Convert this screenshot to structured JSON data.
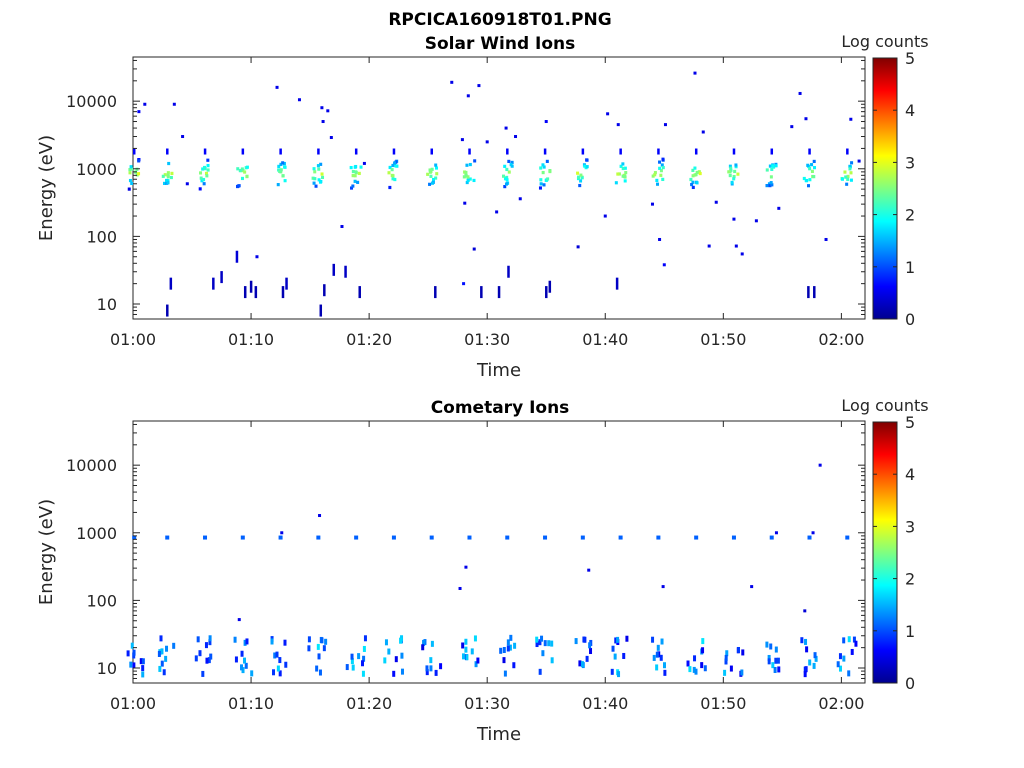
{
  "figure_title": "RPCICA160918T01.PNG",
  "colormap": [
    "#00008f",
    "#0000ff",
    "#0080ff",
    "#00ffff",
    "#80ff80",
    "#ffff00",
    "#ff8000",
    "#ff0000",
    "#800000"
  ],
  "chart_data": [
    {
      "type": "heatmap",
      "title": "Solar Wind Ions",
      "xlabel": "Time",
      "ylabel": "Energy (eV)",
      "xticks": [
        "01:00",
        "01:10",
        "01:20",
        "01:30",
        "01:40",
        "01:50",
        "02:00"
      ],
      "yticks": [
        "10",
        "100",
        "1000",
        "10000"
      ],
      "yscale": "log",
      "ylim": [
        6,
        45000
      ],
      "xlim_minutes": [
        0,
        62
      ],
      "colorbar": {
        "label": "Log counts",
        "ticks": [
          "0",
          "1",
          "2",
          "3",
          "4",
          "5"
        ],
        "range": [
          0,
          5
        ]
      },
      "sweeps": {
        "times_minutes": [
          0.1,
          2.9,
          6.1,
          9.3,
          12.5,
          15.7,
          18.9,
          22.1,
          25.3,
          28.5,
          31.7,
          34.9,
          38.1,
          41.3,
          44.5,
          47.7,
          50.9,
          54.1,
          57.3,
          60.5
        ],
        "peak_energy_eV": 850,
        "peak_log_counts": 2.8
      },
      "scattered_points": [
        [
          0.5,
          7000,
          0.6
        ],
        [
          1.0,
          9000,
          0.5
        ],
        [
          3.5,
          9000,
          0.5
        ],
        [
          4.2,
          3000,
          0.5
        ],
        [
          4.6,
          600,
          0.5
        ],
        [
          12.2,
          16000,
          0.5
        ],
        [
          14.1,
          10500,
          0.5
        ],
        [
          16.1,
          5000,
          0.5
        ],
        [
          16.5,
          7200,
          0.5
        ],
        [
          16.8,
          2900,
          0.5
        ],
        [
          16.0,
          8000,
          0.5
        ],
        [
          17.7,
          140,
          0.5
        ],
        [
          27.0,
          19000,
          0.5
        ],
        [
          27.9,
          2700,
          0.5
        ],
        [
          28.0,
          20,
          0.7
        ],
        [
          28.1,
          310,
          0.5
        ],
        [
          28.4,
          12000,
          0.5
        ],
        [
          28.9,
          65,
          0.4
        ],
        [
          29.3,
          17000,
          0.5
        ],
        [
          30.0,
          2500,
          0.5
        ],
        [
          30.8,
          230,
          0.5
        ],
        [
          31.6,
          4000,
          0.5
        ],
        [
          32.4,
          3000,
          0.5
        ],
        [
          32.8,
          360,
          0.5
        ],
        [
          35.0,
          5000,
          0.6
        ],
        [
          37.7,
          70,
          0.4
        ],
        [
          40.0,
          200,
          0.5
        ],
        [
          40.2,
          6500,
          0.5
        ],
        [
          41.1,
          4500,
          0.5
        ],
        [
          44.0,
          300,
          0.5
        ],
        [
          44.6,
          90,
          0.5
        ],
        [
          45.1,
          4500,
          0.5
        ],
        [
          45.0,
          38,
          0.6
        ],
        [
          47.6,
          26000,
          0.5
        ],
        [
          48.3,
          3500,
          0.5
        ],
        [
          48.8,
          72,
          0.5
        ],
        [
          49.4,
          320,
          0.5
        ],
        [
          50.9,
          180,
          0.5
        ],
        [
          51.1,
          72,
          0.5
        ],
        [
          51.6,
          55,
          0.5
        ],
        [
          52.8,
          170,
          0.5
        ],
        [
          54.7,
          260,
          0.5
        ],
        [
          55.8,
          4200,
          0.5
        ],
        [
          56.5,
          13000,
          0.5
        ],
        [
          57.0,
          5500,
          0.5
        ],
        [
          58.7,
          90,
          0.5
        ],
        [
          60.8,
          5400,
          0.5
        ],
        [
          61.5,
          1300,
          0.5
        ],
        [
          19.6,
          1200,
          0.5
        ],
        [
          10.5,
          50,
          0.5
        ]
      ],
      "low_energy_marks": [
        [
          2.9,
          8,
          0.2
        ],
        [
          3.2,
          20,
          0.3
        ],
        [
          6.8,
          20,
          0.3
        ],
        [
          7.5,
          25,
          0.3
        ],
        [
          8.8,
          50,
          0.4
        ],
        [
          9.5,
          15,
          0.2
        ],
        [
          10.0,
          18,
          0.2
        ],
        [
          10.4,
          15,
          0.2
        ],
        [
          12.7,
          15,
          0.2
        ],
        [
          13.0,
          20,
          0.3
        ],
        [
          15.9,
          8,
          0.2
        ],
        [
          16.2,
          16,
          0.2
        ],
        [
          17.0,
          32,
          0.3
        ],
        [
          18.0,
          30,
          0.3
        ],
        [
          19.2,
          15,
          0.2
        ],
        [
          25.6,
          15,
          0.2
        ],
        [
          29.5,
          15,
          0.2
        ],
        [
          31.0,
          15,
          0.2
        ],
        [
          31.8,
          30,
          0.3
        ],
        [
          35.0,
          15,
          0.2
        ],
        [
          35.3,
          18,
          0.2
        ],
        [
          41.0,
          20,
          0.3
        ],
        [
          57.2,
          15,
          0.2
        ],
        [
          57.7,
          15,
          0.2
        ]
      ]
    },
    {
      "type": "heatmap",
      "title": "Cometary Ions",
      "xlabel": "Time",
      "ylabel": "Energy (eV)",
      "xticks": [
        "01:00",
        "01:10",
        "01:20",
        "01:30",
        "01:40",
        "01:50",
        "02:00"
      ],
      "yticks": [
        "10",
        "100",
        "1000",
        "10000"
      ],
      "yscale": "log",
      "ylim": [
        6,
        45000
      ],
      "xlim_minutes": [
        0,
        62
      ],
      "colorbar": {
        "label": "Log counts",
        "ticks": [
          "0",
          "1",
          "2",
          "3",
          "4",
          "5"
        ],
        "range": [
          0,
          5
        ]
      },
      "sweeps": {
        "times_minutes": [
          0.1,
          2.9,
          6.1,
          9.3,
          12.5,
          15.7,
          18.9,
          22.1,
          25.3,
          28.5,
          31.7,
          34.9,
          38.1,
          41.3,
          44.5,
          47.7,
          50.9,
          54.1,
          57.3,
          60.5
        ],
        "line_energy_eV": 850,
        "line_log_counts": 1.1,
        "low_band_eV": [
          8,
          28
        ],
        "low_band_log_counts": 1.6
      },
      "scattered_points": [
        [
          9.0,
          52,
          0.5
        ],
        [
          15.8,
          1800,
          0.5
        ],
        [
          27.7,
          150,
          0.5
        ],
        [
          28.2,
          310,
          0.5
        ],
        [
          38.6,
          280,
          0.5
        ],
        [
          44.9,
          160,
          0.5
        ],
        [
          52.4,
          160,
          0.5
        ],
        [
          56.9,
          70,
          0.4
        ],
        [
          58.2,
          10000,
          0.5
        ],
        [
          54.5,
          1000,
          0.5
        ],
        [
          12.6,
          1000,
          0.5
        ],
        [
          57.6,
          1000,
          0.5
        ]
      ]
    }
  ]
}
